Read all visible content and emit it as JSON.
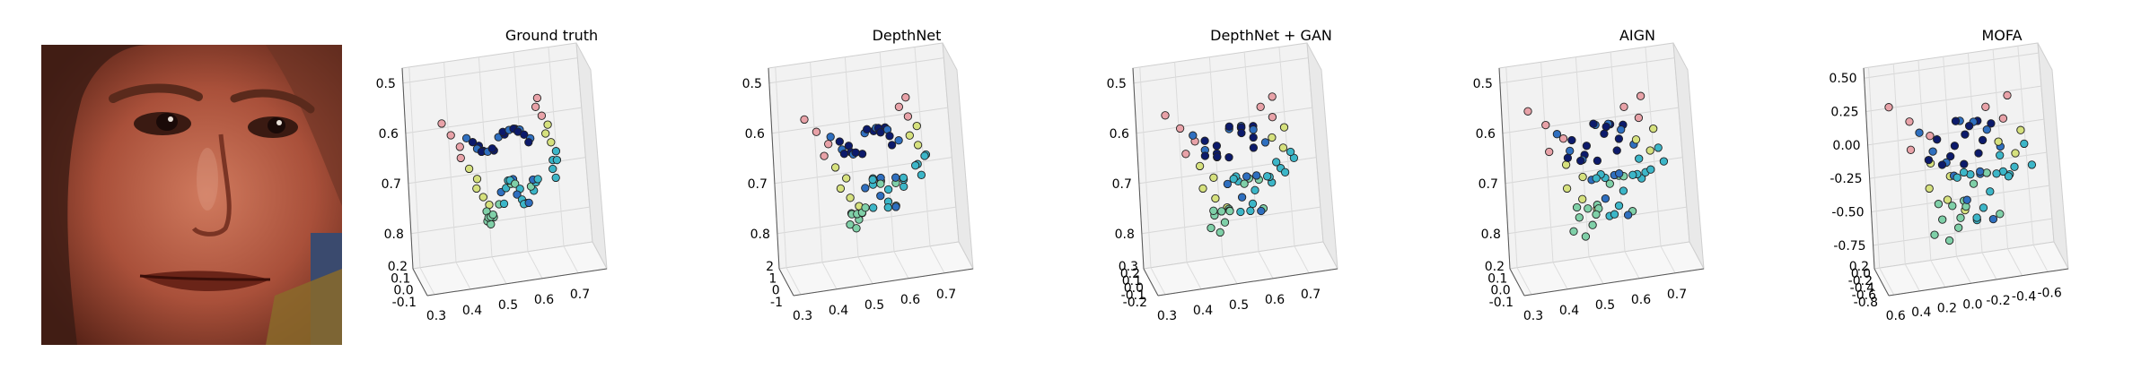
{
  "figure": {
    "image_alt": "face photograph"
  },
  "colors": {
    "pink": "#e8a2a8",
    "yellow": "#d6e17e",
    "green": "#7fd0a8",
    "cyan": "#3cb6c8",
    "blue": "#2f6fbf",
    "navy": "#0c1a6b"
  },
  "chart_data": [
    {
      "type": "scatter3d",
      "title": "Ground truth",
      "z_ticks": [
        "0.5",
        "0.6",
        "0.7",
        "0.8"
      ],
      "y_ticks": [
        "0.2",
        "0.1",
        "0.0",
        "-0.1"
      ],
      "x_ticks": [
        "0.3",
        "0.4",
        "0.5",
        "0.6",
        "0.7"
      ],
      "x_range": [
        0.3,
        0.75
      ],
      "y_range": [
        -0.1,
        0.2
      ],
      "z_range": [
        0.45,
        0.85
      ],
      "points_note": "68 facial landmarks colored by depth"
    },
    {
      "type": "scatter3d",
      "title": "DepthNet",
      "z_ticks": [
        "0.5",
        "0.6",
        "0.7",
        "0.8"
      ],
      "y_ticks": [
        "2",
        "1",
        "0",
        "-1"
      ],
      "x_ticks": [
        "0.3",
        "0.4",
        "0.5",
        "0.6",
        "0.7"
      ],
      "x_range": [
        0.3,
        0.75
      ],
      "y_range": [
        -1,
        2
      ],
      "z_range": [
        0.45,
        0.85
      ]
    },
    {
      "type": "scatter3d",
      "title": "DepthNet + GAN",
      "z_ticks": [
        "0.5",
        "0.6",
        "0.7",
        "0.8"
      ],
      "y_ticks": [
        "0.3",
        "0.2",
        "0.1",
        "0.0",
        "-0.1",
        "-0.2"
      ],
      "x_ticks": [
        "0.3",
        "0.4",
        "0.5",
        "0.6",
        "0.7"
      ],
      "x_range": [
        0.3,
        0.75
      ],
      "y_range": [
        -0.2,
        0.3
      ],
      "z_range": [
        0.45,
        0.85
      ]
    },
    {
      "type": "scatter3d",
      "title": "AIGN",
      "z_ticks": [
        "0.5",
        "0.6",
        "0.7",
        "0.8"
      ],
      "y_ticks": [
        "0.2",
        "0.1",
        "0.0",
        "-0.1"
      ],
      "x_ticks": [
        "0.3",
        "0.4",
        "0.5",
        "0.6",
        "0.7"
      ],
      "x_range": [
        0.3,
        0.75
      ],
      "y_range": [
        -0.1,
        0.2
      ],
      "z_range": [
        0.45,
        0.85
      ]
    },
    {
      "type": "scatter3d",
      "title": "MOFA",
      "z_ticks": [
        "0.50",
        "0.25",
        "0.00",
        "-0.25",
        "-0.50",
        "-0.75"
      ],
      "y_ticks": [
        "0.2",
        "0.0",
        "-0.2",
        "-0.4",
        "-0.6",
        "-0.8"
      ],
      "x_ticks": [
        "0.6",
        "0.4",
        "0.2",
        "0.0",
        "-0.2",
        "-0.4",
        "-0.6"
      ],
      "x_range": [
        0.6,
        -0.6
      ],
      "y_range": [
        -0.8,
        0.2
      ],
      "z_range": [
        -0.75,
        0.5
      ]
    }
  ]
}
